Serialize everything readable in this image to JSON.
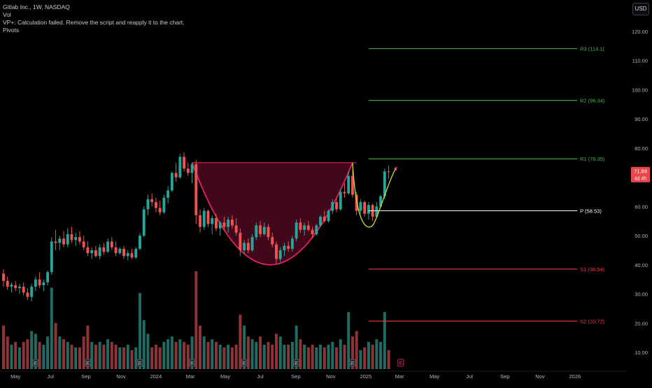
{
  "legend": {
    "symbol_line": "Gitlab Inc., 1W, NASDAQ",
    "vol_label": "Vol",
    "vp_message": "VP+: Calculation failed. Remove the script and reapply it to the chart.",
    "pivots_label": "Pivots"
  },
  "currency": "USD",
  "colors": {
    "background": "#000000",
    "up": "#26a69a",
    "down": "#ef5350",
    "volume_up": "#1f6b64",
    "volume_down": "#8e3437",
    "pattern": "#e91e63",
    "pivot_p": "#ffffff",
    "resistance": "#4caf50",
    "support": "#f23645",
    "handle": "#c6e03a"
  },
  "chart_data": {
    "type": "candlestick",
    "interval": "1W",
    "y_axis": {
      "scale": "linear",
      "ylim": [
        0,
        125
      ],
      "ticks": [
        "10.00",
        "20.00",
        "30.00",
        "40.00",
        "50.00",
        "60.00",
        "70.00",
        "80.00",
        "90.00",
        "100.00",
        "110.00",
        "120.00"
      ],
      "unit": "USD"
    },
    "x_axis": {
      "range": [
        "2023-04-10",
        "2026-03-02"
      ],
      "ticks": [
        {
          "label": "May",
          "date": "2023-05-01"
        },
        {
          "label": "Jul",
          "date": "2023-07-01"
        },
        {
          "label": "Sep",
          "date": "2023-09-01"
        },
        {
          "label": "Nov",
          "date": "2023-11-01"
        },
        {
          "label": "2024",
          "date": "2024-01-01"
        },
        {
          "label": "Mar",
          "date": "2024-03-01"
        },
        {
          "label": "May",
          "date": "2024-05-01"
        },
        {
          "label": "Jul",
          "date": "2024-07-01"
        },
        {
          "label": "Sep",
          "date": "2024-09-01"
        },
        {
          "label": "Nov",
          "date": "2024-11-01"
        },
        {
          "label": "2025",
          "date": "2025-01-01"
        },
        {
          "label": "Mar",
          "date": "2025-03-01"
        },
        {
          "label": "May",
          "date": "2025-05-01"
        },
        {
          "label": "Jul",
          "date": "2025-07-01"
        },
        {
          "label": "Sep",
          "date": "2025-09-01"
        },
        {
          "label": "Nov",
          "date": "2025-11-01"
        },
        {
          "label": "2026",
          "date": "2026-01-01"
        }
      ]
    },
    "last_price": {
      "value": 71.89,
      "label": "71.89",
      "countdown": "4d 4h"
    },
    "candles": [
      {
        "date": "2023-04-10",
        "o": 37.0,
        "h": 38.5,
        "l": 32.5,
        "c": 34.5,
        "v": 16
      },
      {
        "date": "2023-04-17",
        "o": 34.5,
        "h": 36.0,
        "l": 31.5,
        "c": 32.5,
        "v": 12
      },
      {
        "date": "2023-04-24",
        "o": 32.5,
        "h": 34.0,
        "l": 30.5,
        "c": 33.2,
        "v": 9
      },
      {
        "date": "2023-05-01",
        "o": 33.0,
        "h": 34.5,
        "l": 31.0,
        "c": 32.0,
        "v": 10
      },
      {
        "date": "2023-05-08",
        "o": 32.0,
        "h": 33.5,
        "l": 30.0,
        "c": 32.5,
        "v": 8
      },
      {
        "date": "2023-05-15",
        "o": 32.5,
        "h": 34.0,
        "l": 29.5,
        "c": 30.5,
        "v": 10
      },
      {
        "date": "2023-05-22",
        "o": 30.5,
        "h": 32.0,
        "l": 28.0,
        "c": 29.0,
        "v": 11
      },
      {
        "date": "2023-05-29",
        "o": 29.0,
        "h": 33.5,
        "l": 27.5,
        "c": 32.5,
        "v": 14
      },
      {
        "date": "2023-06-05",
        "o": 32.5,
        "h": 36.0,
        "l": 31.0,
        "c": 35.0,
        "v": 13
      },
      {
        "date": "2023-06-12",
        "o": 35.0,
        "h": 37.5,
        "l": 32.0,
        "c": 33.0,
        "v": 10
      },
      {
        "date": "2023-06-19",
        "o": 33.0,
        "h": 35.0,
        "l": 31.0,
        "c": 34.0,
        "v": 9
      },
      {
        "date": "2023-06-26",
        "o": 34.0,
        "h": 38.0,
        "l": 33.0,
        "c": 37.5,
        "v": 12
      },
      {
        "date": "2023-07-03",
        "o": 37.5,
        "h": 49.5,
        "l": 36.5,
        "c": 48.0,
        "v": 30
      },
      {
        "date": "2023-07-10",
        "o": 48.0,
        "h": 52.0,
        "l": 45.0,
        "c": 47.5,
        "v": 17
      },
      {
        "date": "2023-07-17",
        "o": 47.5,
        "h": 50.0,
        "l": 45.0,
        "c": 49.0,
        "v": 12
      },
      {
        "date": "2023-07-24",
        "o": 49.0,
        "h": 51.5,
        "l": 46.0,
        "c": 47.0,
        "v": 11
      },
      {
        "date": "2023-07-31",
        "o": 47.0,
        "h": 52.5,
        "l": 46.0,
        "c": 50.5,
        "v": 10
      },
      {
        "date": "2023-08-07",
        "o": 50.5,
        "h": 53.0,
        "l": 47.5,
        "c": 48.5,
        "v": 9
      },
      {
        "date": "2023-08-14",
        "o": 48.5,
        "h": 51.0,
        "l": 46.5,
        "c": 49.5,
        "v": 8
      },
      {
        "date": "2023-08-21",
        "o": 49.5,
        "h": 51.5,
        "l": 47.0,
        "c": 48.0,
        "v": 8
      },
      {
        "date": "2023-08-28",
        "o": 48.0,
        "h": 50.0,
        "l": 45.0,
        "c": 46.0,
        "v": 12
      },
      {
        "date": "2023-09-04",
        "o": 46.0,
        "h": 48.0,
        "l": 43.0,
        "c": 44.0,
        "v": 16
      },
      {
        "date": "2023-09-11",
        "o": 44.0,
        "h": 46.0,
        "l": 42.0,
        "c": 45.0,
        "v": 10
      },
      {
        "date": "2023-09-18",
        "o": 45.0,
        "h": 46.5,
        "l": 42.5,
        "c": 43.0,
        "v": 9
      },
      {
        "date": "2023-09-25",
        "o": 43.0,
        "h": 47.0,
        "l": 42.0,
        "c": 46.0,
        "v": 10
      },
      {
        "date": "2023-10-02",
        "o": 46.0,
        "h": 47.5,
        "l": 43.5,
        "c": 44.5,
        "v": 9
      },
      {
        "date": "2023-10-09",
        "o": 44.5,
        "h": 49.0,
        "l": 44.0,
        "c": 48.0,
        "v": 11
      },
      {
        "date": "2023-10-16",
        "o": 48.0,
        "h": 49.5,
        "l": 45.0,
        "c": 46.0,
        "v": 10
      },
      {
        "date": "2023-10-23",
        "o": 46.0,
        "h": 48.0,
        "l": 43.0,
        "c": 44.0,
        "v": 9
      },
      {
        "date": "2023-10-30",
        "o": 44.0,
        "h": 46.0,
        "l": 43.5,
        "c": 45.5,
        "v": 8
      },
      {
        "date": "2023-11-06",
        "o": 45.5,
        "h": 46.5,
        "l": 42.0,
        "c": 43.0,
        "v": 8
      },
      {
        "date": "2023-11-13",
        "o": 43.0,
        "h": 45.0,
        "l": 41.5,
        "c": 44.0,
        "v": 9
      },
      {
        "date": "2023-11-20",
        "o": 44.0,
        "h": 45.5,
        "l": 42.0,
        "c": 42.5,
        "v": 7
      },
      {
        "date": "2023-11-27",
        "o": 42.5,
        "h": 46.0,
        "l": 42.0,
        "c": 45.5,
        "v": 8
      },
      {
        "date": "2023-12-04",
        "o": 45.5,
        "h": 51.0,
        "l": 45.0,
        "c": 50.0,
        "v": 28
      },
      {
        "date": "2023-12-11",
        "o": 50.0,
        "h": 60.0,
        "l": 49.5,
        "c": 59.0,
        "v": 18
      },
      {
        "date": "2023-12-18",
        "o": 59.0,
        "h": 64.0,
        "l": 57.0,
        "c": 62.5,
        "v": 13
      },
      {
        "date": "2023-12-25",
        "o": 62.5,
        "h": 64.5,
        "l": 60.0,
        "c": 61.5,
        "v": 8
      },
      {
        "date": "2024-01-01",
        "o": 61.5,
        "h": 63.0,
        "l": 58.0,
        "c": 59.5,
        "v": 9
      },
      {
        "date": "2024-01-08",
        "o": 59.5,
        "h": 62.0,
        "l": 57.0,
        "c": 58.0,
        "v": 8
      },
      {
        "date": "2024-01-15",
        "o": 58.0,
        "h": 64.0,
        "l": 57.5,
        "c": 63.0,
        "v": 10
      },
      {
        "date": "2024-01-22",
        "o": 63.0,
        "h": 67.0,
        "l": 61.0,
        "c": 65.5,
        "v": 11
      },
      {
        "date": "2024-01-29",
        "o": 65.5,
        "h": 72.0,
        "l": 65.0,
        "c": 71.5,
        "v": 12
      },
      {
        "date": "2024-02-05",
        "o": 71.5,
        "h": 75.0,
        "l": 68.5,
        "c": 70.0,
        "v": 10
      },
      {
        "date": "2024-02-12",
        "o": 70.0,
        "h": 78.0,
        "l": 69.5,
        "c": 77.0,
        "v": 11
      },
      {
        "date": "2024-02-19",
        "o": 77.0,
        "h": 78.5,
        "l": 72.0,
        "c": 73.0,
        "v": 10
      },
      {
        "date": "2024-02-26",
        "o": 73.0,
        "h": 75.0,
        "l": 70.5,
        "c": 71.5,
        "v": 9
      },
      {
        "date": "2024-03-04",
        "o": 71.5,
        "h": 75.0,
        "l": 68.0,
        "c": 74.5,
        "v": 12
      },
      {
        "date": "2024-03-11",
        "o": 74.5,
        "h": 76.0,
        "l": 54.0,
        "c": 57.0,
        "v": 36
      },
      {
        "date": "2024-03-18",
        "o": 57.0,
        "h": 59.0,
        "l": 51.0,
        "c": 53.0,
        "v": 16
      },
      {
        "date": "2024-03-25",
        "o": 53.0,
        "h": 59.5,
        "l": 52.0,
        "c": 58.5,
        "v": 12
      },
      {
        "date": "2024-04-01",
        "o": 58.5,
        "h": 59.0,
        "l": 53.0,
        "c": 54.0,
        "v": 10
      },
      {
        "date": "2024-04-08",
        "o": 54.0,
        "h": 57.0,
        "l": 50.5,
        "c": 56.0,
        "v": 11
      },
      {
        "date": "2024-04-15",
        "o": 56.0,
        "h": 57.5,
        "l": 51.5,
        "c": 52.5,
        "v": 10
      },
      {
        "date": "2024-04-22",
        "o": 52.5,
        "h": 55.0,
        "l": 50.0,
        "c": 54.5,
        "v": 9
      },
      {
        "date": "2024-04-29",
        "o": 54.5,
        "h": 56.5,
        "l": 52.0,
        "c": 53.0,
        "v": 8
      },
      {
        "date": "2024-05-06",
        "o": 53.0,
        "h": 56.5,
        "l": 51.0,
        "c": 55.5,
        "v": 9
      },
      {
        "date": "2024-05-13",
        "o": 55.5,
        "h": 57.0,
        "l": 52.5,
        "c": 53.5,
        "v": 8
      },
      {
        "date": "2024-05-20",
        "o": 53.5,
        "h": 56.0,
        "l": 50.0,
        "c": 51.0,
        "v": 9
      },
      {
        "date": "2024-05-27",
        "o": 51.0,
        "h": 52.5,
        "l": 43.0,
        "c": 45.0,
        "v": 20
      },
      {
        "date": "2024-06-03",
        "o": 45.0,
        "h": 48.5,
        "l": 43.5,
        "c": 47.5,
        "v": 16
      },
      {
        "date": "2024-06-10",
        "o": 47.5,
        "h": 49.0,
        "l": 44.0,
        "c": 45.0,
        "v": 12
      },
      {
        "date": "2024-06-17",
        "o": 45.0,
        "h": 50.5,
        "l": 44.5,
        "c": 49.5,
        "v": 11
      },
      {
        "date": "2024-06-24",
        "o": 49.5,
        "h": 54.5,
        "l": 48.5,
        "c": 53.5,
        "v": 10
      },
      {
        "date": "2024-07-01",
        "o": 53.5,
        "h": 55.0,
        "l": 49.5,
        "c": 50.5,
        "v": 12
      },
      {
        "date": "2024-07-08",
        "o": 50.5,
        "h": 54.5,
        "l": 50.0,
        "c": 53.0,
        "v": 9
      },
      {
        "date": "2024-07-15",
        "o": 53.0,
        "h": 54.0,
        "l": 48.5,
        "c": 49.5,
        "v": 10
      },
      {
        "date": "2024-07-22",
        "o": 49.5,
        "h": 51.0,
        "l": 46.0,
        "c": 47.0,
        "v": 9
      },
      {
        "date": "2024-07-29",
        "o": 47.0,
        "h": 48.0,
        "l": 40.5,
        "c": 42.0,
        "v": 13
      },
      {
        "date": "2024-08-05",
        "o": 42.0,
        "h": 46.0,
        "l": 41.0,
        "c": 45.0,
        "v": 12
      },
      {
        "date": "2024-08-12",
        "o": 45.0,
        "h": 47.5,
        "l": 43.0,
        "c": 46.5,
        "v": 9
      },
      {
        "date": "2024-08-19",
        "o": 46.5,
        "h": 48.0,
        "l": 44.5,
        "c": 45.5,
        "v": 9
      },
      {
        "date": "2024-08-26",
        "o": 45.5,
        "h": 50.0,
        "l": 44.5,
        "c": 49.0,
        "v": 10
      },
      {
        "date": "2024-09-02",
        "o": 49.0,
        "h": 55.5,
        "l": 48.0,
        "c": 54.5,
        "v": 16
      },
      {
        "date": "2024-09-09",
        "o": 54.5,
        "h": 56.0,
        "l": 51.0,
        "c": 52.0,
        "v": 11
      },
      {
        "date": "2024-09-16",
        "o": 52.0,
        "h": 54.5,
        "l": 50.0,
        "c": 53.5,
        "v": 9
      },
      {
        "date": "2024-09-23",
        "o": 53.5,
        "h": 55.0,
        "l": 51.5,
        "c": 52.0,
        "v": 8
      },
      {
        "date": "2024-09-30",
        "o": 52.0,
        "h": 53.0,
        "l": 49.0,
        "c": 50.5,
        "v": 9
      },
      {
        "date": "2024-10-07",
        "o": 50.5,
        "h": 54.0,
        "l": 50.0,
        "c": 53.5,
        "v": 8
      },
      {
        "date": "2024-10-14",
        "o": 53.5,
        "h": 57.0,
        "l": 53.0,
        "c": 56.5,
        "v": 9
      },
      {
        "date": "2024-10-21",
        "o": 56.5,
        "h": 58.5,
        "l": 54.5,
        "c": 55.0,
        "v": 8
      },
      {
        "date": "2024-10-28",
        "o": 55.0,
        "h": 59.0,
        "l": 54.5,
        "c": 58.5,
        "v": 9
      },
      {
        "date": "2024-11-04",
        "o": 58.5,
        "h": 62.5,
        "l": 57.5,
        "c": 61.5,
        "v": 10
      },
      {
        "date": "2024-11-11",
        "o": 61.5,
        "h": 63.0,
        "l": 58.0,
        "c": 59.0,
        "v": 8
      },
      {
        "date": "2024-11-18",
        "o": 59.0,
        "h": 66.0,
        "l": 58.5,
        "c": 65.0,
        "v": 11
      },
      {
        "date": "2024-11-25",
        "o": 65.0,
        "h": 68.0,
        "l": 63.0,
        "c": 64.5,
        "v": 9
      },
      {
        "date": "2024-12-02",
        "o": 64.5,
        "h": 72.0,
        "l": 64.0,
        "c": 70.5,
        "v": 21
      },
      {
        "date": "2024-12-09",
        "o": 70.5,
        "h": 72.5,
        "l": 63.0,
        "c": 64.0,
        "v": 12
      },
      {
        "date": "2024-12-16",
        "o": 64.0,
        "h": 65.0,
        "l": 57.0,
        "c": 58.5,
        "v": 14
      },
      {
        "date": "2024-12-23",
        "o": 58.5,
        "h": 62.5,
        "l": 57.5,
        "c": 61.5,
        "v": 7
      },
      {
        "date": "2024-12-30",
        "o": 61.5,
        "h": 62.0,
        "l": 56.5,
        "c": 57.5,
        "v": 8
      },
      {
        "date": "2025-01-06",
        "o": 57.5,
        "h": 61.5,
        "l": 55.5,
        "c": 60.5,
        "v": 10
      },
      {
        "date": "2025-01-13",
        "o": 60.5,
        "h": 61.0,
        "l": 55.0,
        "c": 56.5,
        "v": 9
      },
      {
        "date": "2025-01-20",
        "o": 56.5,
        "h": 61.5,
        "l": 56.0,
        "c": 60.0,
        "v": 11
      },
      {
        "date": "2025-01-27",
        "o": 60.0,
        "h": 64.0,
        "l": 59.5,
        "c": 63.5,
        "v": 10
      },
      {
        "date": "2025-02-03",
        "o": 63.5,
        "h": 73.0,
        "l": 62.5,
        "c": 72.0,
        "v": 21
      },
      {
        "date": "2025-02-10",
        "o": 72.0,
        "h": 74.0,
        "l": 69.5,
        "c": 71.89,
        "v": 7
      }
    ],
    "pivots": [
      {
        "name": "R3",
        "value": 114.1,
        "label": "R3 (114.1("
      },
      {
        "name": "R2",
        "value": 96.34,
        "label": "R2 (96.34)"
      },
      {
        "name": "R1",
        "value": 76.35,
        "label": "R1 (76.35)"
      },
      {
        "name": "P",
        "value": 58.53,
        "label": "P (58.53)"
      },
      {
        "name": "S1",
        "value": 38.54,
        "label": "S1 (38.54)"
      },
      {
        "name": "S2",
        "value": 20.72,
        "label": "S2 (20.72)"
      }
    ],
    "pivots_start_date": "2025-01-06",
    "pivots_end_date": "2026-01-05",
    "earnings_markers": [
      "2023-06-05",
      "2023-09-04",
      "2023-12-04",
      "2024-03-04",
      "2024-06-03",
      "2024-09-02",
      "2024-12-09",
      "2025-03-03"
    ],
    "cup_pattern": {
      "rim_left": {
        "date": "2024-03-04",
        "value": 75
      },
      "rim_right": {
        "date": "2024-12-09",
        "value": 75
      },
      "bottom": {
        "date": "2024-07-15",
        "value": 40
      }
    },
    "handle_pattern": {
      "start": {
        "date": "2024-12-09",
        "value": 75
      },
      "bottom": {
        "date": "2025-01-13",
        "value": 53.5
      },
      "end": {
        "date": "2025-02-24",
        "value": 73.5
      }
    }
  }
}
